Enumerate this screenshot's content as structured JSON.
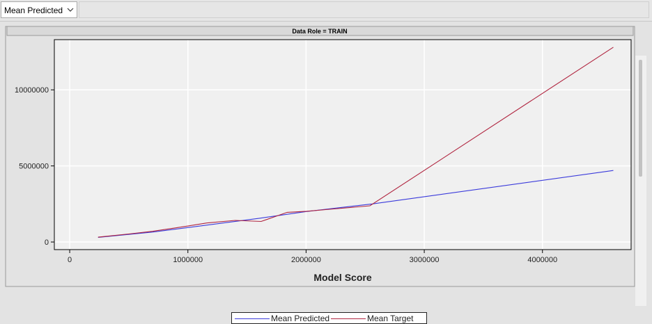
{
  "toolbar": {
    "selector_value": "Mean Predicted"
  },
  "colors": {
    "mean_predicted": "#3a3adb",
    "mean_target": "#b0243f",
    "plot_background": "#f0f0f0",
    "grid": "#ffffff"
  },
  "chart_data": {
    "type": "line",
    "title": "Data Role = TRAIN",
    "xlabel": "Model Score",
    "ylabel": "",
    "xlim": [
      -130000,
      4750000
    ],
    "ylim": [
      -500000,
      13300000
    ],
    "x_ticks": [
      0,
      1000000,
      2000000,
      3000000,
      4000000
    ],
    "x_tick_labels": [
      "0",
      "1000000",
      "2000000",
      "3000000",
      "4000000"
    ],
    "y_ticks": [
      0,
      5000000,
      10000000
    ],
    "y_tick_labels": [
      "0",
      "5000000",
      "10000000"
    ],
    "grid": true,
    "legend_position": "bottom-center",
    "series": [
      {
        "name": "Mean Predicted",
        "color": "#3a3adb",
        "x": [
          240000,
          700000,
          1000000,
          1600000,
          2000000,
          2560000,
          4600000
        ],
        "y": [
          300000,
          650000,
          950000,
          1550000,
          2000000,
          2500000,
          4700000
        ]
      },
      {
        "name": "Mean Target",
        "color": "#b0243f",
        "x": [
          240000,
          500000,
          700000,
          1000000,
          1160000,
          1400000,
          1620000,
          1840000,
          2000000,
          2200000,
          2540000,
          4600000
        ],
        "y": [
          320000,
          530000,
          700000,
          1050000,
          1250000,
          1420000,
          1350000,
          1950000,
          2020000,
          2150000,
          2380000,
          12800000
        ]
      }
    ]
  }
}
